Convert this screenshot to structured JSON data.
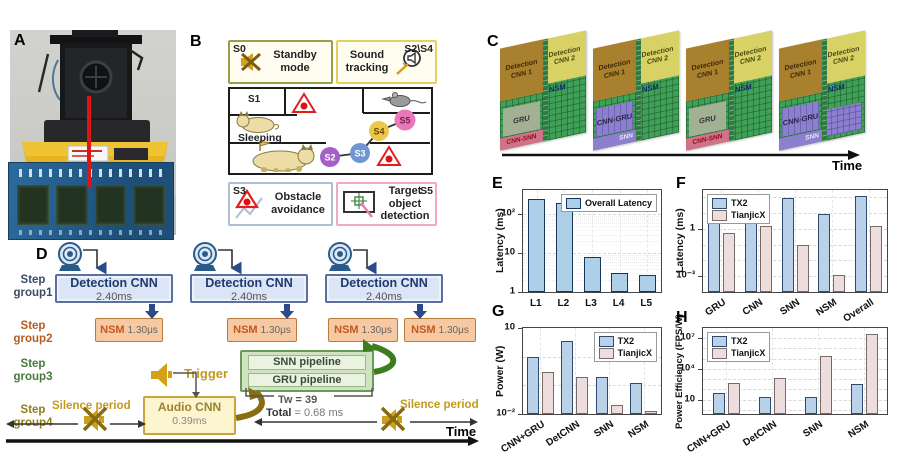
{
  "panels": {
    "A": {
      "label": "A"
    },
    "B": {
      "label": "B",
      "s0_id": "S0",
      "s0_text": "Standby mode",
      "sound_text": "Sound tracking",
      "sound_id": "S2\\S4",
      "s1_id": "S1",
      "s1_text": "Sleeping",
      "s3_id": "S3",
      "s3_text": "Obstacle avoidance",
      "s5_text": "Target object detection",
      "s5_id": "S5",
      "nodes": [
        {
          "id": "S2",
          "color": "#a560c8",
          "text_color": "#ffffff"
        },
        {
          "id": "S3",
          "color": "#6f96d2",
          "text_color": "#ffffff"
        },
        {
          "id": "S4",
          "color": "#ecc84a",
          "text_color": "#6a4a00"
        },
        {
          "id": "S5",
          "color": "#e879b9",
          "text_color": "#7a1f4e"
        }
      ]
    },
    "C": {
      "label": "C",
      "time_label": "Time",
      "chips": [
        {
          "top": "Detection CNN 1",
          "mid": "GRU",
          "bottom": "CNN-SNN",
          "variant": "gru"
        },
        {
          "top": "Detection CNN 2",
          "tag": "NSM",
          "variant": "plain"
        },
        {
          "top": "Detection CNN 1",
          "mid": "CNN-GRU",
          "bottom": "SNN",
          "variant": "purple"
        },
        {
          "top": "Detection CNN 2",
          "tag": "NSM",
          "variant": "plain"
        },
        {
          "top": "Detection CNN 1",
          "mid": "GRU",
          "bottom": "CNN-SNN",
          "variant": "gru"
        },
        {
          "top": "Detection CNN 2",
          "tag": "NSM",
          "variant": "plain"
        },
        {
          "top": "Detection CNN 1",
          "mid": "CNN-GRU",
          "bottom": "SNN",
          "variant": "purple"
        },
        {
          "top": "Detection CNN 2",
          "tag": "NSM",
          "variant": "purplebody"
        }
      ]
    },
    "D": {
      "label": "D",
      "steps": [
        {
          "label": "Step group1",
          "color": "#3c4a66"
        },
        {
          "label": "Step group2",
          "color": "#b65c22"
        },
        {
          "label": "Step group3",
          "color": "#47793a"
        },
        {
          "label": "Step group4",
          "color": "#8f7d16"
        }
      ],
      "detection": {
        "title": "Detection CNN",
        "time": "2.40ms"
      },
      "nsm": {
        "title": "NSM",
        "time": "1.30μs"
      },
      "pipelines": {
        "snn": "SNN pipeline",
        "gru": "GRU pipeline"
      },
      "audio": {
        "title": "Audio CNN",
        "time": "0.39ms"
      },
      "trigger_label": "Trigger",
      "silence_label": "Silence period",
      "tw_label": "Tw = 39",
      "total_label": "Total",
      "total_value": "= 0.68 ms",
      "time_label": "Time"
    },
    "E": {
      "label": "E"
    },
    "F": {
      "label": "F"
    },
    "G": {
      "label": "G"
    },
    "H": {
      "label": "H"
    }
  },
  "chart_data": [
    {
      "id": "E",
      "type": "bar",
      "yscale": "log",
      "minor_grid": true,
      "categories": [
        "L1",
        "L2",
        "L3",
        "L4",
        "L5"
      ],
      "series": [
        {
          "name": "Overall Latency",
          "color": "#aecfe8",
          "border": "#16365c",
          "values": [
            240,
            200,
            8,
            3,
            2.7
          ]
        }
      ],
      "ylabel": "Latency (ms)",
      "ylim": [
        1,
        420
      ],
      "yticks": [
        {
          "v": 1,
          "label": "1"
        },
        {
          "v": 10,
          "label": "10"
        },
        {
          "v": 100,
          "label": "10²"
        }
      ],
      "legend_pos": "top-right",
      "xtick_rotate": 0
    },
    {
      "id": "F",
      "type": "bar",
      "yscale": "log",
      "minor_grid": false,
      "categories": [
        "GRU",
        "CNN",
        "SNN",
        "NSM",
        "Overall"
      ],
      "series": [
        {
          "name": "TX2",
          "color": "#b9d2ea",
          "border": "#2e4a6e",
          "values": [
            6,
            8,
            90,
            8,
            110
          ]
        },
        {
          "name": "TianjicX",
          "color": "#eedddd",
          "border": "#776a6a",
          "values": [
            0.5,
            1.5,
            0.09,
            0.0012,
            1.5
          ]
        }
      ],
      "ylabel": "Latency (ms)",
      "ylim": [
        0.0001,
        280
      ],
      "yticks": [
        {
          "v": 0.001,
          "label": "10⁻³"
        },
        {
          "v": 1,
          "label": "1"
        }
      ],
      "legend_pos": "top-left",
      "xtick_rotate": 33
    },
    {
      "id": "G",
      "type": "bar",
      "yscale": "log",
      "minor_grid": false,
      "categories": [
        "CNN+GRU",
        "DetCNN",
        "SNN",
        "NSM"
      ],
      "series": [
        {
          "name": "TX2",
          "color": "#b9d2ea",
          "border": "#2e4a6e",
          "values": [
            1.0,
            3.5,
            0.2,
            0.12
          ]
        },
        {
          "name": "TianjicX",
          "color": "#eedddd",
          "border": "#776a6a",
          "values": [
            0.3,
            0.2,
            0.02,
            0.013
          ]
        }
      ],
      "ylabel": "Power (W)",
      "ylim": [
        0.01,
        10
      ],
      "yticks": [
        {
          "v": 0.01,
          "label": "10⁻²"
        },
        {
          "v": 10,
          "label": "10"
        }
      ],
      "legend_pos": "top-right",
      "xtick_rotate": 33
    },
    {
      "id": "H",
      "type": "bar",
      "yscale": "log",
      "minor_grid": false,
      "categories": [
        "CNN+GRU",
        "DetCNN",
        "SNN",
        "NSM"
      ],
      "series": [
        {
          "name": "TX2",
          "color": "#b9d2ea",
          "border": "#2e4a6e",
          "values": [
            50,
            18,
            17,
            370
          ]
        },
        {
          "name": "TianjicX",
          "color": "#eedddd",
          "border": "#776a6a",
          "values": [
            400,
            1200,
            180000,
            25000000
          ]
        }
      ],
      "ylabel": "Power Efficiency (FPS/W)",
      "ylim": [
        0.4,
        100000000
      ],
      "yticks": [
        {
          "v": 10,
          "label": "10"
        },
        {
          "v": 10000,
          "label": "10⁴"
        },
        {
          "v": 10000000,
          "label": "10⁷"
        }
      ],
      "legend_pos": "top-left",
      "xtick_rotate": 33
    }
  ]
}
